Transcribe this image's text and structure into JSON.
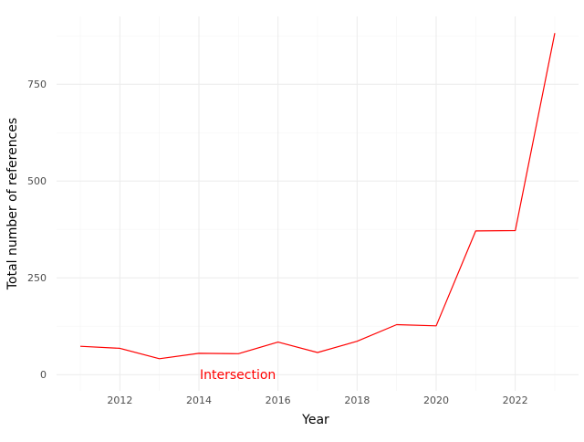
{
  "chart_data": {
    "type": "line",
    "title": "",
    "xlabel": "Year",
    "ylabel": "Total number of references",
    "x": [
      2011,
      2012,
      2013,
      2014,
      2015,
      2016,
      2017,
      2018,
      2019,
      2020,
      2021,
      2022,
      2023
    ],
    "series": [
      {
        "values": [
          73,
          68,
          41,
          55,
          54,
          84,
          57,
          86,
          129,
          126,
          371,
          372,
          882
        ],
        "color": "#ff0000"
      }
    ],
    "xlim": [
      2010.4,
      2023.6
    ],
    "ylim": [
      -42,
      925
    ],
    "x_ticks": [
      2012,
      2014,
      2016,
      2018,
      2020,
      2022
    ],
    "y_ticks": [
      0,
      250,
      500,
      750
    ],
    "grid": true,
    "legend": "none",
    "annotations": [
      {
        "text": "Intersection",
        "x": 2016,
        "y": 0,
        "color": "#ff0000"
      }
    ],
    "colors": {
      "grid_major": "#ebebeb",
      "grid_minor": "#f5f5f5",
      "tick_label": "#4d4d4d",
      "axis_title": "#000000"
    }
  }
}
